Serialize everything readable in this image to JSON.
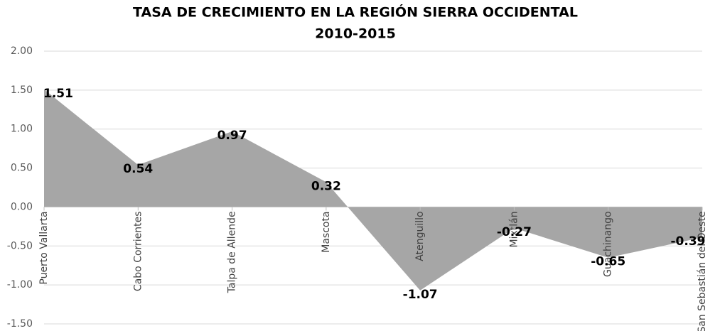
{
  "chart_data": {
    "type": "area",
    "title": "TASA DE CRECIMIENTO EN LA REGIÓN SIERRA OCCIDENTAL",
    "subtitle": "2010-2015",
    "categories": [
      "Puerto Vallarta",
      "Cabo Corrientes",
      "Talpa de Allende",
      "Mascota",
      "Atenguillo",
      "Mixtlán",
      "Guachinango",
      "San Sebastián del Oeste"
    ],
    "values": [
      1.51,
      0.54,
      0.97,
      0.32,
      -1.07,
      -0.27,
      -0.65,
      -0.39
    ],
    "color": "#a6a6a6",
    "ylim": [
      -1.5,
      2.0
    ],
    "yticks": [
      {
        "value": 2,
        "label": "2.00"
      },
      {
        "value": 1.5,
        "label": "1.50"
      },
      {
        "value": 1,
        "label": "1.00"
      },
      {
        "value": 0.5,
        "label": "0.50"
      },
      {
        "value": 0,
        "label": "0.00"
      },
      {
        "value": -0.5,
        "label": "-0.50"
      },
      {
        "value": -1,
        "label": "-1.00"
      },
      {
        "value": -1.5,
        "label": "-1.50"
      }
    ],
    "grid": true
  }
}
